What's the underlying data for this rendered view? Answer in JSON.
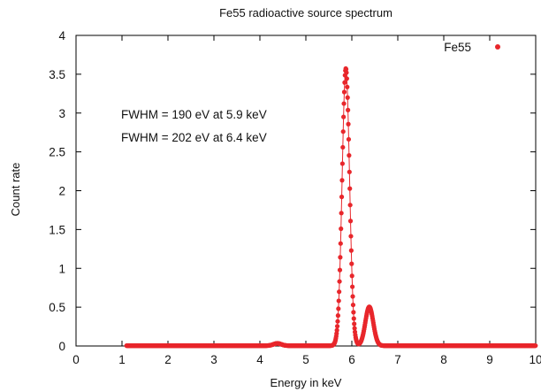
{
  "chart_data": {
    "type": "scatter",
    "title": "Fe55 radioactive source spectrum",
    "xlabel": "Energy in keV",
    "ylabel": "Count rate",
    "xlim": [
      0,
      10
    ],
    "ylim": [
      0,
      4
    ],
    "xticks": [
      "0",
      "1",
      "2",
      "3",
      "4",
      "5",
      "6",
      "7",
      "8",
      "9",
      "10"
    ],
    "yticks": [
      "0",
      "0.5",
      "1",
      "1.5",
      "2",
      "2.5",
      "3",
      "3.5",
      "4"
    ],
    "grid": false,
    "legend_position": "top-right",
    "annotations": [
      "FWHM = 190 eV at 5.9 keV",
      "FWHM = 202 eV at 6.4 keV"
    ],
    "series": [
      {
        "name": "Fe55",
        "color": "#e8262b",
        "marker": "circle",
        "line": true,
        "x_range": [
          1.1,
          10
        ],
        "peaks": [
          {
            "center": 5.87,
            "height": 3.57,
            "fwhm": 0.19
          },
          {
            "center": 6.38,
            "height": 0.5,
            "fwhm": 0.202
          }
        ],
        "minor_features": [
          {
            "center": 4.38,
            "height": 0.03,
            "fwhm": 0.2
          }
        ],
        "baseline": 0.004
      }
    ]
  }
}
